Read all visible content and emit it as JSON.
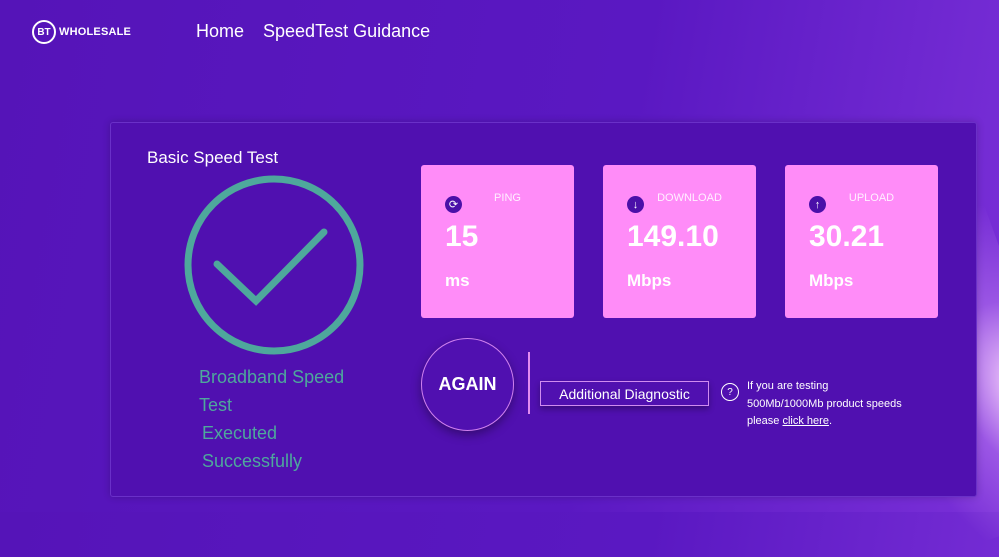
{
  "header": {
    "logo_bt": "BT",
    "logo_text": "WHOLESALE",
    "nav": [
      {
        "label": "Home"
      },
      {
        "label": "SpeedTest Guidance"
      }
    ]
  },
  "main": {
    "title": "Basic Speed Test",
    "status_lines": [
      "Broadband Speed",
      "Test",
      "Executed",
      "Successfully"
    ],
    "cards": [
      {
        "label": "PING",
        "value": "15",
        "unit": "ms",
        "icon": "ping-icon"
      },
      {
        "label": "DOWNLOAD",
        "value": "149.10",
        "unit": "Mbps",
        "icon": "arrow-down-icon"
      },
      {
        "label": "UPLOAD",
        "value": "30.21",
        "unit": "Mbps",
        "icon": "arrow-up-icon"
      }
    ],
    "again_label": "AGAIN",
    "diagnostic_label": "Additional Diagnostic",
    "help_icon": "?",
    "info_line1": "If you are testing",
    "info_line2": "500Mb/1000Mb product speeds",
    "info_prefix": "please ",
    "info_link": "click here",
    "info_suffix": "."
  },
  "colors": {
    "background": "#5514b8",
    "panel": "#5010b0",
    "card": "#ff8cf8",
    "success": "#4ea89c"
  }
}
